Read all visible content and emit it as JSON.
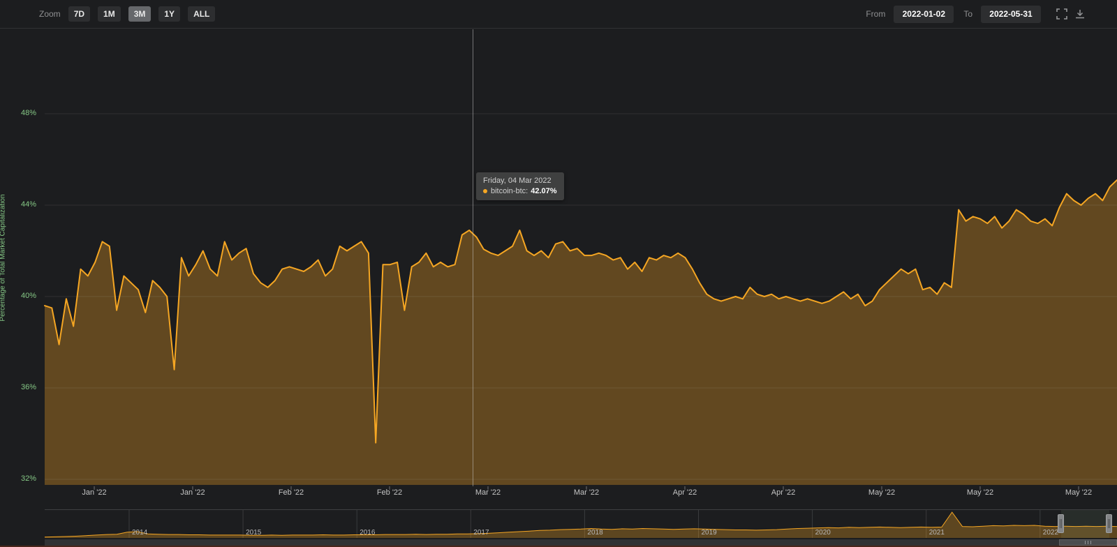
{
  "toolbar": {
    "zoom_label": "Zoom",
    "buttons": [
      {
        "label": "7D",
        "selected": false
      },
      {
        "label": "1M",
        "selected": false
      },
      {
        "label": "3M",
        "selected": true
      },
      {
        "label": "1Y",
        "selected": false
      },
      {
        "label": "ALL",
        "selected": false
      }
    ],
    "from_label": "From",
    "from_value": "2022-01-02",
    "to_label": "To",
    "to_value": "2022-05-31",
    "icons": [
      "fullscreen-icon",
      "download-icon"
    ]
  },
  "tooltip": {
    "date": "Friday, 04 Mar 2022",
    "series_label": "bitcoin-btc:",
    "value": "42.07%"
  },
  "chart_data": {
    "type": "area",
    "title": "",
    "ylabel": "Percentage of Total Market Capitalization",
    "xlabel": "",
    "y_tick_labels": [
      "48%",
      "44%",
      "40%",
      "36%",
      "32%"
    ],
    "y_tick_values": [
      48,
      44,
      40,
      36,
      32
    ],
    "ylim": [
      31.8,
      51.7
    ],
    "grid": "horizontal",
    "legend": "none",
    "x_start_date": "2022-01-02",
    "x_end_date": "2022-05-31",
    "x_tick_labels": [
      "Jan '22",
      "Jan '22",
      "Feb '22",
      "Feb '22",
      "Mar '22",
      "Mar '22",
      "Apr '22",
      "Apr '22",
      "May '22",
      "May '22",
      "May '22"
    ],
    "line_color": "#f5a623",
    "fill_color": "rgba(245,166,35,0.32)",
    "axis_label_color": "#85c785",
    "series": [
      {
        "name": "bitcoin-btc",
        "values": [
          39.6,
          39.5,
          37.9,
          39.9,
          38.7,
          41.2,
          40.9,
          41.5,
          42.4,
          42.2,
          39.4,
          40.9,
          40.6,
          40.3,
          39.3,
          40.7,
          40.4,
          40.0,
          36.8,
          41.7,
          40.9,
          41.4,
          42.0,
          41.2,
          40.9,
          42.4,
          41.6,
          41.9,
          42.1,
          41.0,
          40.6,
          40.4,
          40.7,
          41.2,
          41.3,
          41.2,
          41.1,
          41.3,
          41.6,
          40.9,
          41.2,
          42.2,
          42.0,
          42.2,
          42.4,
          41.9,
          33.6,
          41.4,
          41.4,
          41.5,
          39.4,
          41.3,
          41.5,
          41.9,
          41.3,
          41.5,
          41.3,
          41.4,
          42.7,
          42.9,
          42.6,
          42.07,
          41.9,
          41.8,
          42.0,
          42.2,
          42.9,
          42.0,
          41.8,
          42.0,
          41.7,
          42.3,
          42.4,
          42.0,
          42.1,
          41.8,
          41.8,
          41.9,
          41.8,
          41.6,
          41.7,
          41.2,
          41.5,
          41.1,
          41.7,
          41.6,
          41.8,
          41.7,
          41.9,
          41.7,
          41.2,
          40.6,
          40.1,
          39.9,
          39.8,
          39.9,
          40.0,
          39.9,
          40.4,
          40.1,
          40.0,
          40.1,
          39.9,
          40.0,
          39.9,
          39.8,
          39.9,
          39.8,
          39.7,
          39.8,
          40.0,
          40.2,
          39.9,
          40.1,
          39.6,
          39.8,
          40.3,
          40.6,
          40.9,
          41.2,
          41.0,
          41.2,
          40.3,
          40.4,
          40.1,
          40.6,
          40.4,
          43.8,
          43.3,
          43.5,
          43.4,
          43.2,
          43.5,
          43.0,
          43.3,
          43.8,
          43.6,
          43.3,
          43.2,
          43.4,
          43.1,
          43.9,
          44.5,
          44.2,
          44.0,
          44.3,
          44.5,
          44.2,
          44.8,
          45.1
        ]
      }
    ],
    "navigator": {
      "type": "area",
      "year_labels": [
        "2014",
        "2015",
        "2016",
        "2017",
        "2018",
        "2019",
        "2020",
        "2021",
        "2022"
      ],
      "selected_window": [
        "2022-01-02",
        "2022-05-31"
      ],
      "normalized": true,
      "values": [
        0.03,
        0.04,
        0.05,
        0.06,
        0.08,
        0.1,
        0.12,
        0.13,
        0.2,
        0.22,
        0.14,
        0.13,
        0.12,
        0.12,
        0.11,
        0.11,
        0.1,
        0.1,
        0.1,
        0.1,
        0.09,
        0.09,
        0.1,
        0.09,
        0.1,
        0.1,
        0.1,
        0.11,
        0.1,
        0.1,
        0.11,
        0.11,
        0.11,
        0.12,
        0.12,
        0.12,
        0.13,
        0.12,
        0.13,
        0.13,
        0.14,
        0.14,
        0.15,
        0.16,
        0.18,
        0.2,
        0.22,
        0.24,
        0.26,
        0.27,
        0.29,
        0.3,
        0.31,
        0.33,
        0.31,
        0.3,
        0.32,
        0.31,
        0.33,
        0.32,
        0.31,
        0.3,
        0.31,
        0.32,
        0.31,
        0.3,
        0.29,
        0.28,
        0.28,
        0.27,
        0.28,
        0.29,
        0.31,
        0.33,
        0.34,
        0.35,
        0.36,
        0.35,
        0.37,
        0.36,
        0.37,
        0.38,
        0.37,
        0.36,
        0.37,
        0.38,
        0.37,
        0.38,
        0.9,
        0.4,
        0.39,
        0.41,
        0.43,
        0.42,
        0.44,
        0.43,
        0.44,
        0.41,
        0.4,
        0.41,
        0.4,
        0.41,
        0.4,
        0.41,
        0.4
      ]
    }
  }
}
